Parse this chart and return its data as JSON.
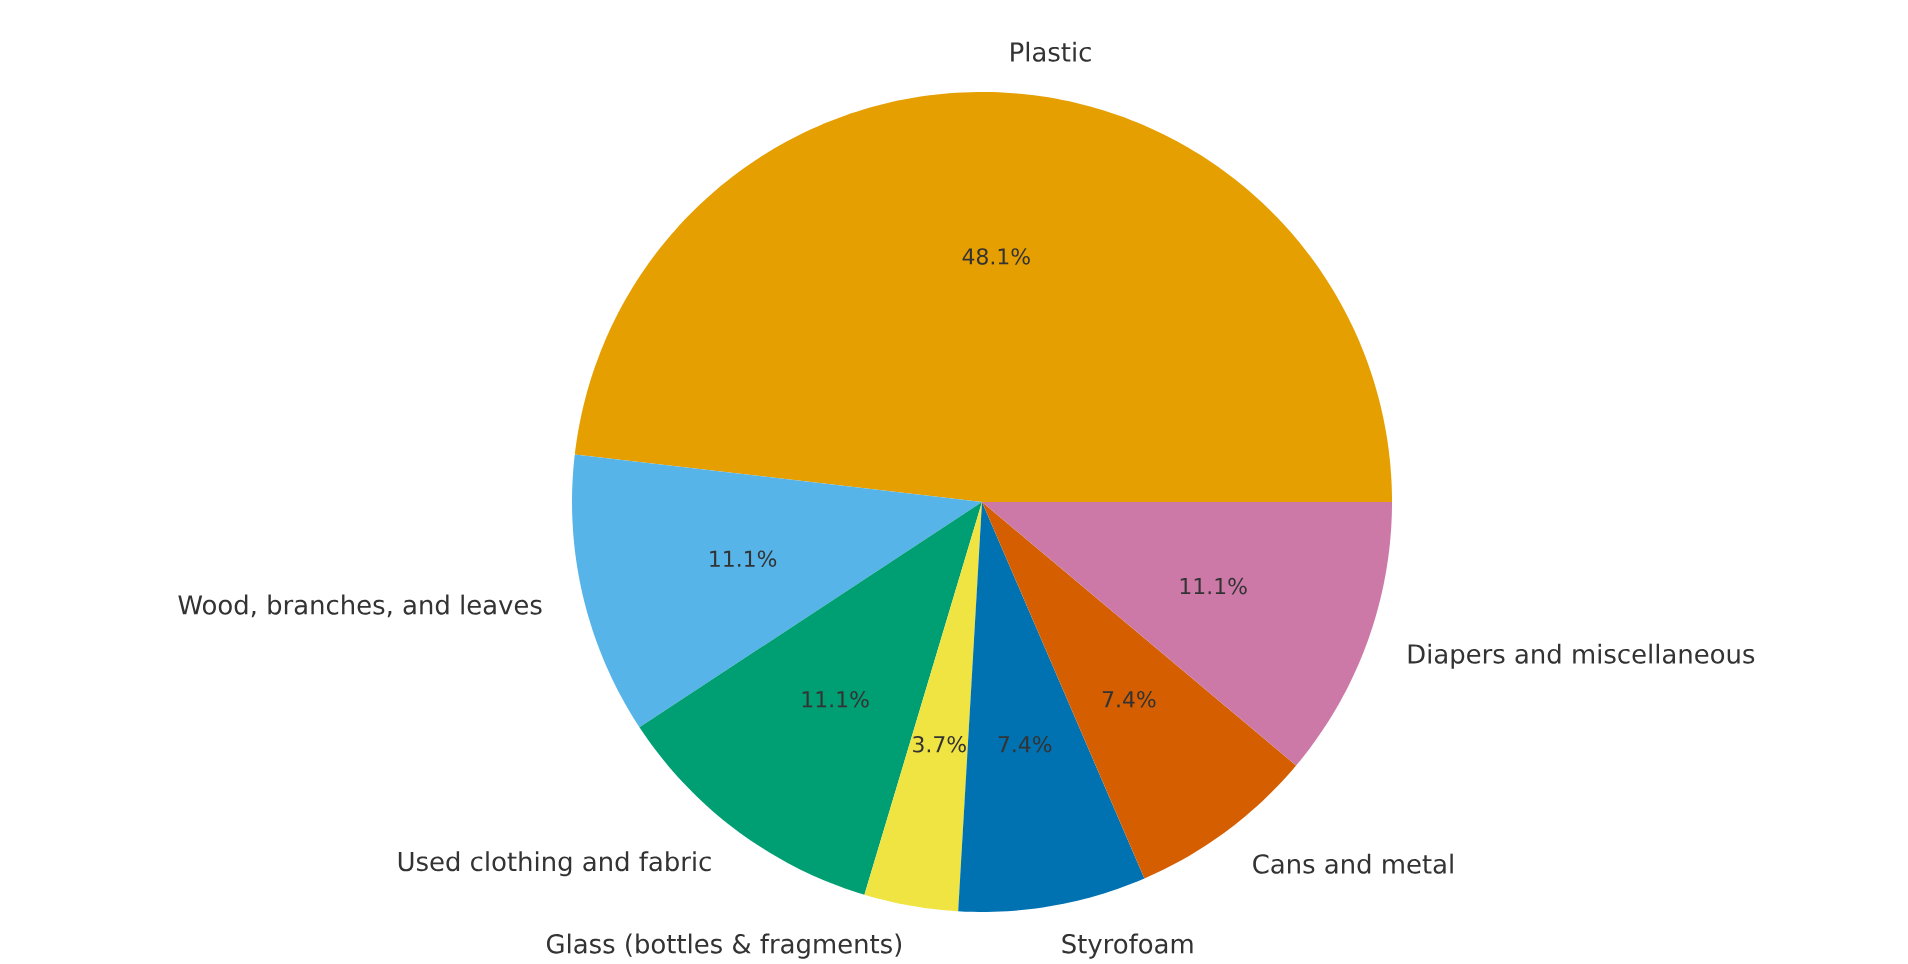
{
  "chart_data": {
    "type": "pie",
    "categories": [
      "Plastic",
      "Wood, branches, and leaves",
      "Used clothing and fabric",
      "Glass (bottles & fragments)",
      "Styrofoam",
      "Cans and metal",
      "Diapers and miscellaneous"
    ],
    "values": [
      48.1,
      11.1,
      11.1,
      3.7,
      7.4,
      7.4,
      11.1
    ],
    "value_labels": [
      "48.1%",
      "11.1%",
      "11.1%",
      "3.7%",
      "7.4%",
      "7.4%",
      "11.1%"
    ],
    "colors": [
      "#e69f00",
      "#56b4e9",
      "#009e73",
      "#f0e442",
      "#0072b2",
      "#d55e00",
      "#cc79a7"
    ]
  }
}
